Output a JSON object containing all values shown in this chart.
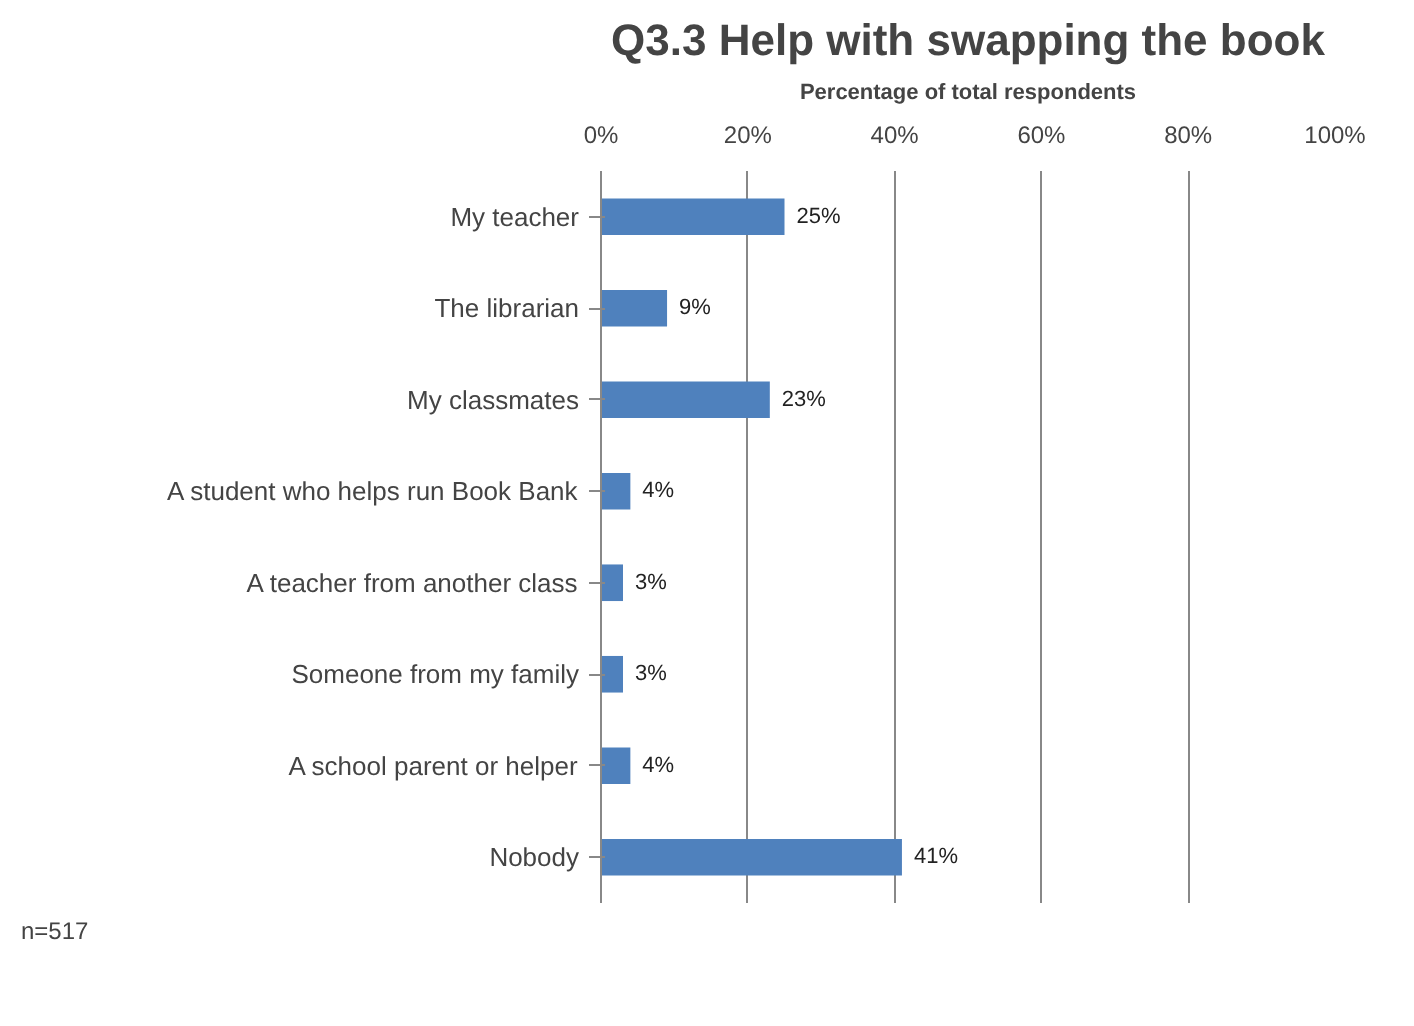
{
  "chart_data": {
    "type": "bar",
    "orientation": "horizontal",
    "title": "Q3.3 Help with swapping the book",
    "xlabel": "Percentage of total respondents",
    "categories": [
      "My teacher",
      "The librarian",
      "My classmates",
      "A student who helps run Book Bank",
      "A teacher from another class",
      "Someone from my family",
      "A school parent or helper",
      "Nobody"
    ],
    "values": [
      25,
      9,
      23,
      4,
      3,
      3,
      4,
      41
    ],
    "value_labels": [
      "25%",
      "9%",
      "23%",
      "4%",
      "3%",
      "3%",
      "4%",
      "41%"
    ],
    "color": "#4f81bd",
    "xlim": [
      0,
      100
    ],
    "xticks": [
      {
        "value": 0,
        "label": "0%"
      },
      {
        "value": 20,
        "label": "20%"
      },
      {
        "value": 40,
        "label": "40%"
      },
      {
        "value": 60,
        "label": "60%"
      },
      {
        "value": 80,
        "label": "80%"
      },
      {
        "value": 100,
        "label": "100%"
      }
    ],
    "grid": "x",
    "annotations": [
      "n=517"
    ]
  }
}
